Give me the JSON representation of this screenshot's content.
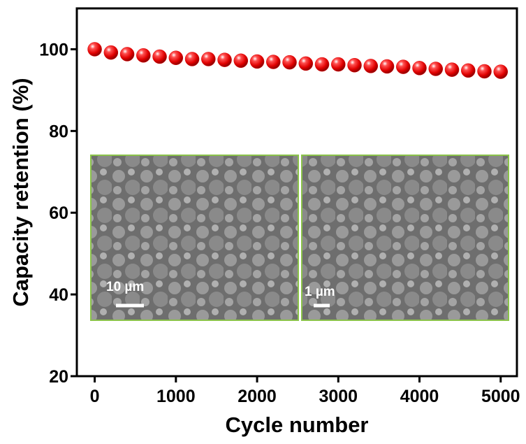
{
  "chart_data": {
    "type": "scatter",
    "x_label": "Cycle number",
    "y_label": "Capacity retention (%)",
    "x": [
      0,
      200,
      400,
      600,
      800,
      1000,
      1200,
      1400,
      1600,
      1800,
      2000,
      2200,
      2400,
      2600,
      2800,
      3000,
      3200,
      3400,
      3600,
      3800,
      4000,
      4200,
      4400,
      4600,
      4800,
      5000
    ],
    "values": [
      100,
      99.2,
      98.8,
      98.5,
      98.2,
      97.9,
      97.6,
      97.6,
      97.4,
      97.2,
      97.0,
      96.9,
      96.8,
      96.5,
      96.3,
      96.3,
      96.1,
      95.9,
      95.8,
      95.7,
      95.4,
      95.2,
      95.0,
      94.8,
      94.6,
      94.5
    ],
    "color": "#e00000",
    "xlim": [
      -220,
      5200
    ],
    "xticks": [
      0,
      1000,
      2000,
      3000,
      4000,
      5000
    ],
    "ylim": [
      20,
      110
    ],
    "yticks": [
      20,
      40,
      60,
      80,
      100
    ]
  },
  "insets": [
    {
      "scale_label": "10 µm"
    },
    {
      "scale_label": "1 µm"
    }
  ]
}
